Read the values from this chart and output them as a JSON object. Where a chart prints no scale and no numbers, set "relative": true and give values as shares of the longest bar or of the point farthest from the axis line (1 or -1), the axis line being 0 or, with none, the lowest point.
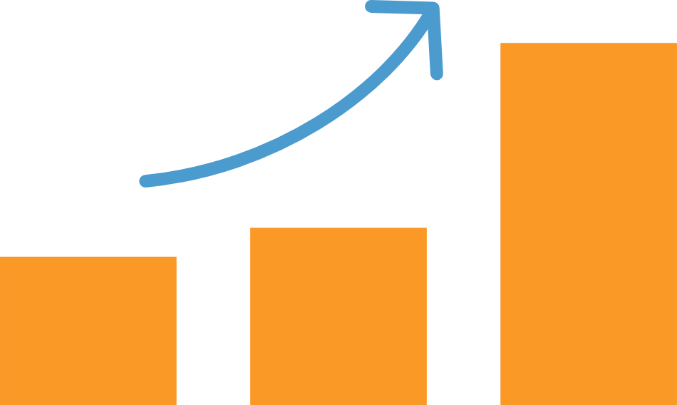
{
  "chart_data": {
    "type": "bar",
    "relative": true,
    "categories": [
      null,
      null,
      null
    ],
    "values": [
      0.41,
      0.49,
      1
    ],
    "color": "#fb9927"
  }
}
